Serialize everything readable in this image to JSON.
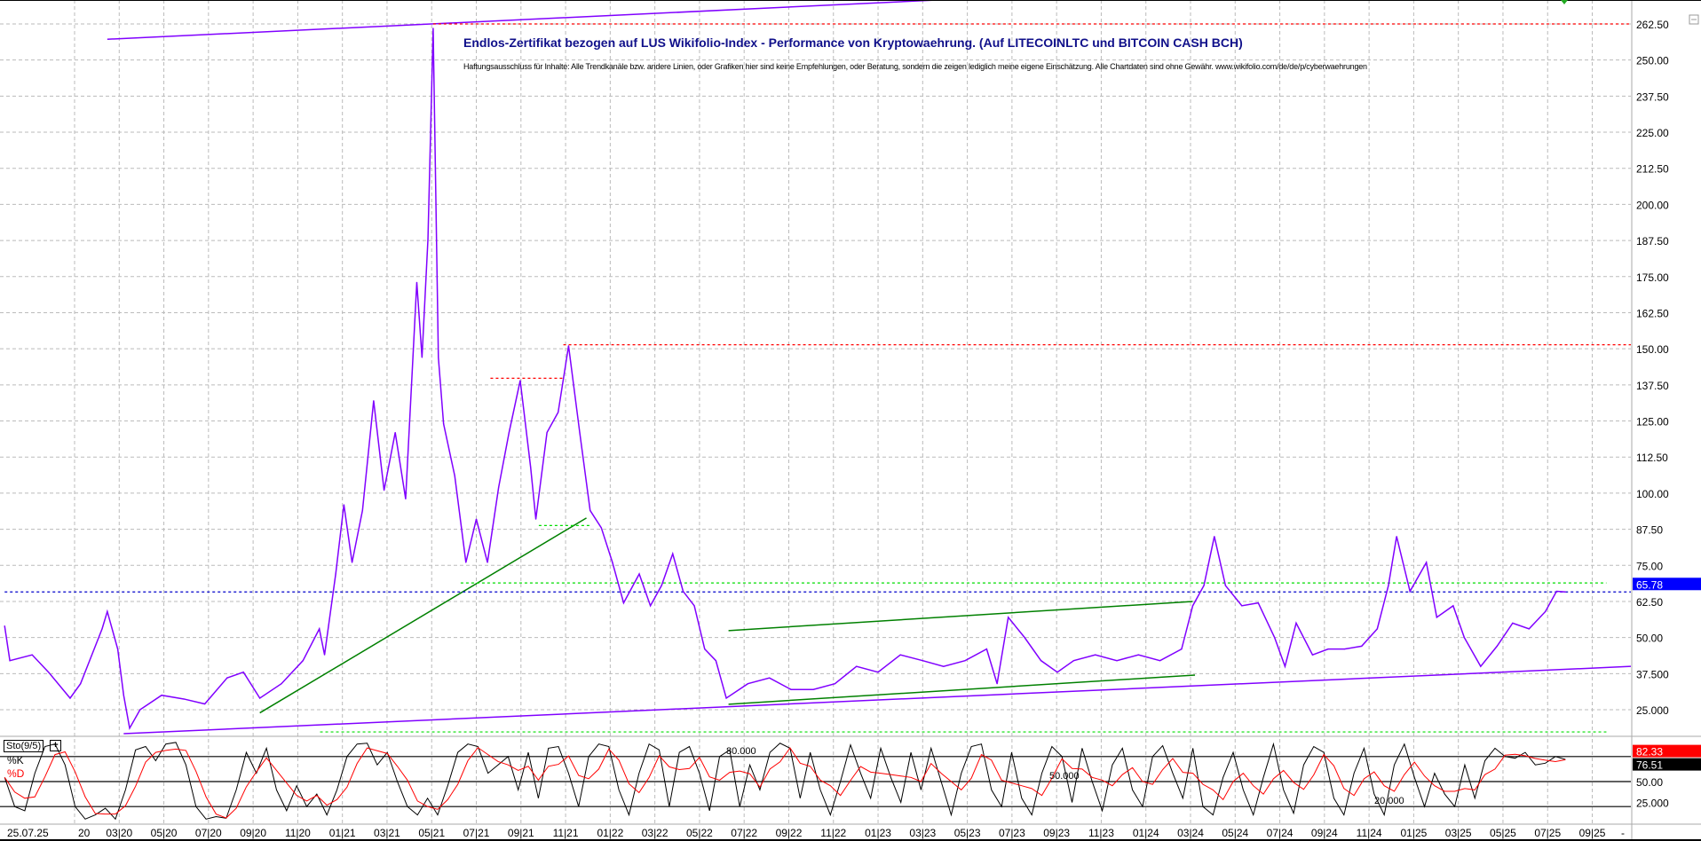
{
  "chart_data": {
    "type": "line",
    "title": "Endlos-Zertifikat bezogen auf LUS Wikifolio-Index - Performance von Kryptowaehrung. (Auf LITECOINLTC und BITCOIN CASH BCH)",
    "subtitle": "Haftungsausschluss für Inhalte: Alle Trendkanäle bzw. andere Linien, oder Grafiken hier sind keine Empfehlungen, oder Beratung, sondern die zeigen lediglich meine eigene Einschätzung. Alle Chartdaten sind ohne Gewähr.  www.wikifolio.com/de/de/p/cyberwaehrungen",
    "ylim": [
      25,
      262.5
    ],
    "y_ticks": [
      "262.50",
      "250.00",
      "237.50",
      "225.00",
      "212.50",
      "200.00",
      "187.50",
      "175.00",
      "162.50",
      "150.00",
      "137.50",
      "125.00",
      "112.50",
      "100.00",
      "87.50",
      "75.00",
      "62.50",
      "50.00",
      "37.500",
      "25.000"
    ],
    "x_tick_labels": [
      {
        "date": "2020-01",
        "label": "20"
      },
      {
        "date": "2020-03",
        "label": "03|20"
      },
      {
        "date": "2020-05",
        "label": "05|20"
      },
      {
        "date": "2020-07",
        "label": "07|20"
      },
      {
        "date": "2020-09",
        "label": "09|20"
      },
      {
        "date": "2020-11",
        "label": "11|20"
      },
      {
        "date": "2021-01",
        "label": "01|21"
      },
      {
        "date": "2021-03",
        "label": "03|21"
      },
      {
        "date": "2021-05",
        "label": "05|21"
      },
      {
        "date": "2021-07",
        "label": "07|21"
      },
      {
        "date": "2021-09",
        "label": "09|21"
      },
      {
        "date": "2021-11",
        "label": "11|21"
      },
      {
        "date": "2022-01",
        "label": "01|22"
      },
      {
        "date": "2022-03",
        "label": "03|22"
      },
      {
        "date": "2022-05",
        "label": "05|22"
      },
      {
        "date": "2022-07",
        "label": "07|22"
      },
      {
        "date": "2022-09",
        "label": "09|22"
      },
      {
        "date": "2022-11",
        "label": "11|22"
      },
      {
        "date": "2023-01",
        "label": "01|23"
      },
      {
        "date": "2023-03",
        "label": "03|23"
      },
      {
        "date": "2023-05",
        "label": "05|23"
      },
      {
        "date": "2023-07",
        "label": "07|23"
      },
      {
        "date": "2023-09",
        "label": "09|23"
      },
      {
        "date": "2023-11",
        "label": "11|23"
      },
      {
        "date": "2024-01",
        "label": "01|24"
      },
      {
        "date": "2024-03",
        "label": "03|24"
      },
      {
        "date": "2024-05",
        "label": "05|24"
      },
      {
        "date": "2024-07",
        "label": "07|24"
      },
      {
        "date": "2024-09",
        "label": "09|24"
      },
      {
        "date": "2024-11",
        "label": "11|24"
      },
      {
        "date": "2025-01",
        "label": "01|25"
      },
      {
        "date": "2025-03",
        "label": "03|25"
      },
      {
        "date": "2025-05",
        "label": "05|25"
      },
      {
        "date": "2025-07",
        "label": "07|25"
      },
      {
        "date": "2025-09",
        "label": "09|25"
      }
    ],
    "cursor_date_label": "25.07.25",
    "axis_end_label": "-",
    "grid": true,
    "series": [
      {
        "color": "#8000ff",
        "points": [
          [
            "2019-09-27",
            54
          ],
          [
            "2019-10-04",
            42
          ],
          [
            "2019-11-04",
            44
          ],
          [
            "2019-11-26",
            38
          ],
          [
            "2019-12-25",
            29
          ],
          [
            "2020-01-09",
            34
          ],
          [
            "2020-02-08",
            53
          ],
          [
            "2020-02-15",
            59
          ],
          [
            "2020-02-29",
            46
          ],
          [
            "2020-03-07",
            30
          ],
          [
            "2020-03-15",
            18.6
          ],
          [
            "2020-03-29",
            25
          ],
          [
            "2020-04-28",
            30
          ],
          [
            "2020-05-28",
            28.7
          ],
          [
            "2020-06-26",
            27
          ],
          [
            "2020-07-26",
            36
          ],
          [
            "2020-08-18",
            38
          ],
          [
            "2020-09-10",
            29
          ],
          [
            "2020-10-09",
            34
          ],
          [
            "2020-11-08",
            42
          ],
          [
            "2020-11-30",
            53
          ],
          [
            "2020-12-07",
            44
          ],
          [
            "2020-12-22",
            72
          ],
          [
            "2021-01-03",
            96
          ],
          [
            "2021-01-14",
            76
          ],
          [
            "2021-01-28",
            94
          ],
          [
            "2021-02-13",
            132
          ],
          [
            "2021-02-27",
            101
          ],
          [
            "2021-03-12",
            121
          ],
          [
            "2021-03-26",
            98
          ],
          [
            "2021-04-11",
            173
          ],
          [
            "2021-04-18",
            147
          ],
          [
            "2021-04-26",
            188
          ],
          [
            "2021-05-03",
            261
          ],
          [
            "2021-05-10",
            147
          ],
          [
            "2021-05-17",
            124
          ],
          [
            "2021-06-02",
            106
          ],
          [
            "2021-06-17",
            76
          ],
          [
            "2021-07-01",
            91
          ],
          [
            "2021-07-16",
            76
          ],
          [
            "2021-08-01",
            102
          ],
          [
            "2021-08-15",
            121
          ],
          [
            "2021-08-30",
            139
          ],
          [
            "2021-09-14",
            109
          ],
          [
            "2021-09-21",
            91
          ],
          [
            "2021-10-06",
            121
          ],
          [
            "2021-10-21",
            128
          ],
          [
            "2021-11-05",
            151
          ],
          [
            "2021-11-20",
            121
          ],
          [
            "2021-12-04",
            94
          ],
          [
            "2021-12-19",
            88
          ],
          [
            "2022-01-04",
            76
          ],
          [
            "2022-01-19",
            62
          ],
          [
            "2022-02-10",
            72
          ],
          [
            "2022-02-25",
            61
          ],
          [
            "2022-03-10",
            68
          ],
          [
            "2022-03-25",
            79
          ],
          [
            "2022-04-09",
            66
          ],
          [
            "2022-04-24",
            61
          ],
          [
            "2022-05-08",
            46
          ],
          [
            "2022-05-23",
            42
          ],
          [
            "2022-06-07",
            29
          ],
          [
            "2022-07-06",
            34
          ],
          [
            "2022-08-05",
            36
          ],
          [
            "2022-09-04",
            32
          ],
          [
            "2022-10-04",
            32
          ],
          [
            "2022-11-03",
            34
          ],
          [
            "2022-12-02",
            40
          ],
          [
            "2023-01-01",
            38
          ],
          [
            "2023-02-01",
            44
          ],
          [
            "2023-03-01",
            42
          ],
          [
            "2023-03-29",
            40
          ],
          [
            "2023-04-28",
            42
          ],
          [
            "2023-05-27",
            46
          ],
          [
            "2023-06-11",
            34
          ],
          [
            "2023-06-26",
            57
          ],
          [
            "2023-07-18",
            50
          ],
          [
            "2023-08-10",
            42
          ],
          [
            "2023-09-02",
            38
          ],
          [
            "2023-09-24",
            42
          ],
          [
            "2023-10-23",
            44
          ],
          [
            "2023-11-22",
            42
          ],
          [
            "2023-12-21",
            44
          ],
          [
            "2024-01-20",
            42
          ],
          [
            "2024-02-19",
            46
          ],
          [
            "2024-03-04",
            61
          ],
          [
            "2024-03-19",
            68
          ],
          [
            "2024-04-03",
            85
          ],
          [
            "2024-04-18",
            68
          ],
          [
            "2024-05-10",
            61
          ],
          [
            "2024-06-02",
            62
          ],
          [
            "2024-06-24",
            50
          ],
          [
            "2024-07-08",
            40
          ],
          [
            "2024-07-23",
            55
          ],
          [
            "2024-08-15",
            44
          ],
          [
            "2024-09-06",
            46
          ],
          [
            "2024-09-28",
            46
          ],
          [
            "2024-10-21",
            47
          ],
          [
            "2024-11-12",
            53
          ],
          [
            "2024-11-27",
            68
          ],
          [
            "2024-12-08",
            85
          ],
          [
            "2024-12-26",
            66
          ],
          [
            "2025-01-18",
            76
          ],
          [
            "2025-02-02",
            57
          ],
          [
            "2025-02-24",
            61
          ],
          [
            "2025-03-09",
            50
          ],
          [
            "2025-04-01",
            40
          ],
          [
            "2025-04-23",
            47
          ],
          [
            "2025-05-14",
            55
          ],
          [
            "2025-06-06",
            53
          ],
          [
            "2025-06-28",
            59
          ],
          [
            "2025-07-13",
            66
          ],
          [
            "2025-07-25",
            65.78
          ]
        ]
      }
    ],
    "trendlines": [
      {
        "color": "#8000ff",
        "style": "solid",
        "from": [
          "2020-02-15",
          257.2
        ],
        "to": [
          "2023-03-14",
          270.7
        ]
      },
      {
        "color": "#8000ff",
        "style": "solid",
        "from": [
          "2020-03-07",
          16.7
        ],
        "to": [
          "2025-12-15",
          40.0
        ]
      },
      {
        "color": "#008000",
        "style": "solid",
        "from": [
          "2020-09-10",
          23.9
        ],
        "to": [
          "2021-11-29",
          91.4
        ]
      },
      {
        "color": "#008000",
        "style": "solid",
        "from": [
          "2022-06-10",
          52.4
        ],
        "to": [
          "2024-03-04",
          62.5
        ]
      },
      {
        "color": "#008000",
        "style": "solid",
        "from": [
          "2022-06-10",
          26.9
        ],
        "to": [
          "2024-03-07",
          37.0
        ]
      },
      {
        "color": "#00dd00",
        "style": "dashed",
        "from": [
          "2021-06-10",
          68.9
        ],
        "to": [
          "2025-09-20",
          68.9
        ]
      },
      {
        "color": "#00dd00",
        "style": "dashed",
        "from": [
          "2021-09-25",
          88.8
        ],
        "to": [
          "2021-12-05",
          88.8
        ]
      },
      {
        "color": "#00dd00",
        "style": "dashed",
        "from": [
          "2020-12-01",
          17.3
        ],
        "to": [
          "2025-09-20",
          17.3
        ]
      },
      {
        "color": "#ff0000",
        "style": "dashed",
        "from": [
          "2021-05-03",
          262.5
        ],
        "to": [
          "2025-12-15",
          262.5
        ]
      },
      {
        "color": "#ff0000",
        "style": "dashed",
        "from": [
          "2021-10-28",
          151.4
        ],
        "to": [
          "2025-12-15",
          151.4
        ]
      },
      {
        "color": "#ff0000",
        "style": "dashed",
        "from": [
          "2021-07-20",
          139.8
        ],
        "to": [
          "2021-10-28",
          139.8
        ]
      },
      {
        "color": "#0000cc",
        "style": "dashed",
        "from": [
          "2019-09-27",
          65.78
        ],
        "to": [
          "2025-12-15",
          65.78
        ]
      }
    ],
    "last_price_label": "65.78",
    "last_price_color": "#0000ff"
  },
  "stochastic": {
    "label": "Sto(9/5)",
    "k_label": "%K",
    "d_label": "%D",
    "k_color": "#000000",
    "d_color": "#ff0000",
    "ylim": [
      0,
      100
    ],
    "levels": [
      80,
      50,
      20
    ],
    "level_labels": [
      "80.000",
      "50.000",
      "20.000"
    ],
    "axis_labels": [
      "50.00",
      "25.000"
    ],
    "d_last": "82.33",
    "k_last": "76.51",
    "start_date": "2019-09-27",
    "end_date": "2025-07-25",
    "k_values": [
      55,
      20,
      15,
      60,
      92,
      95,
      70,
      20,
      5,
      10,
      18,
      5,
      40,
      88,
      92,
      75,
      95,
      97,
      70,
      20,
      5,
      8,
      6,
      40,
      85,
      60,
      90,
      40,
      15,
      45,
      20,
      35,
      10,
      40,
      80,
      95,
      96,
      70,
      85,
      50,
      20,
      10,
      30,
      10,
      45,
      85,
      95,
      92,
      60,
      70,
      80,
      40,
      85,
      30,
      90,
      92,
      60,
      20,
      80,
      95,
      92,
      40,
      10,
      60,
      95,
      88,
      20,
      85,
      92,
      60,
      15,
      80,
      88,
      20,
      70,
      40,
      85,
      96,
      90,
      30,
      85,
      40,
      10,
      50,
      94,
      60,
      30,
      90,
      55,
      25,
      85,
      40,
      90,
      50,
      10,
      60,
      92,
      95,
      40,
      20,
      85,
      30,
      10,
      60,
      92,
      80,
      25,
      90,
      50,
      15,
      70,
      90,
      40,
      20,
      80,
      93,
      60,
      30,
      90,
      20,
      10,
      55,
      85,
      40,
      10,
      55,
      95,
      40,
      12,
      70,
      92,
      85,
      30,
      10,
      60,
      90,
      35,
      10,
      70,
      95,
      55,
      20,
      60,
      35,
      20,
      70,
      30,
      75,
      90,
      80,
      78,
      85,
      70,
      72,
      80,
      76.51
    ]
  }
}
